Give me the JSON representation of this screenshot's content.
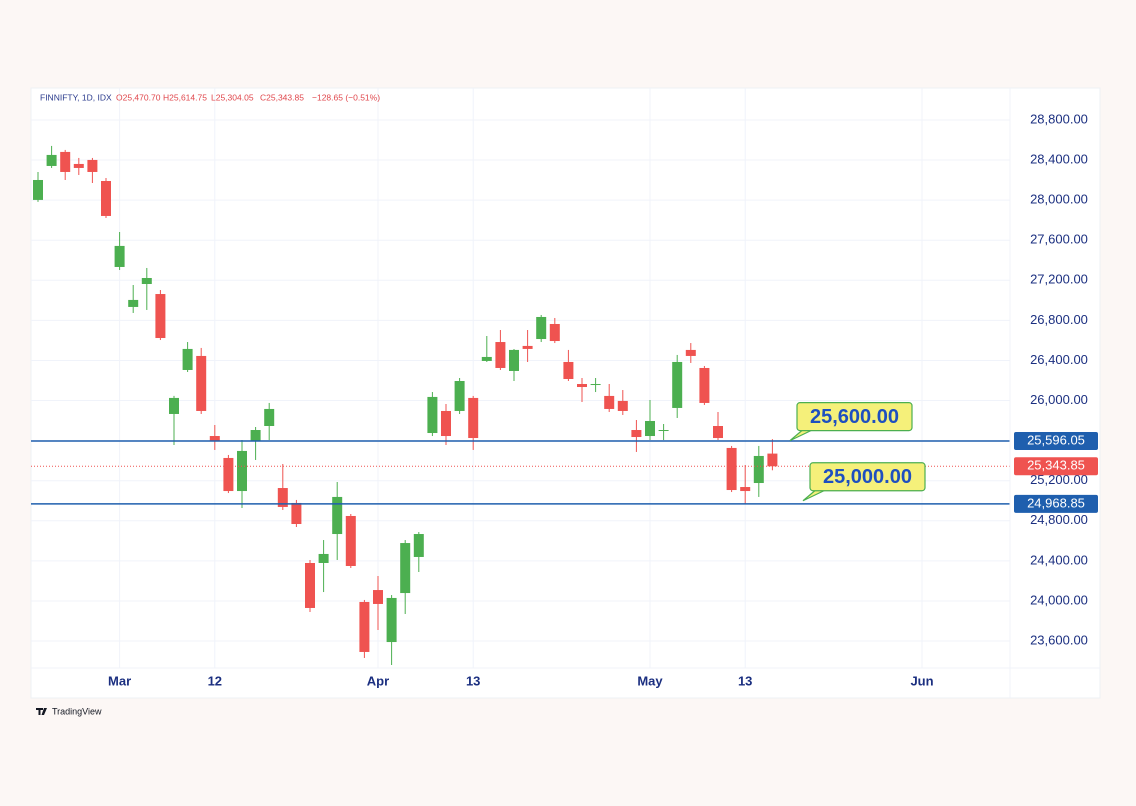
{
  "chart_data": {
    "type": "candlestick",
    "header": {
      "symbol": "FINNIFTY, 1D, IDX",
      "open": "O25,470.70",
      "high": "H25,614.75",
      "low": "L25,304.05",
      "close": "C25,343.85",
      "change": "−128.65 (−0.51%)"
    },
    "watermark": "TradingView",
    "categories": [
      null,
      null,
      null,
      null,
      null,
      null,
      "Mar",
      null,
      null,
      null,
      null,
      null,
      null,
      "12",
      null,
      null,
      null,
      null,
      null,
      null,
      null,
      null,
      null,
      null,
      null,
      "Apr",
      null,
      null,
      null,
      null,
      null,
      null,
      "13",
      null,
      null,
      null,
      null,
      null,
      null,
      null,
      null,
      null,
      null,
      null,
      null,
      "May",
      null,
      null,
      null,
      null,
      null,
      null,
      "13",
      null,
      null,
      null,
      null,
      null,
      null,
      null,
      null,
      null,
      null,
      null,
      null,
      "Jun",
      null,
      null,
      null,
      null,
      null,
      null
    ],
    "open": [
      28002,
      28341,
      28481,
      28361,
      28401,
      28191,
      27333,
      26934,
      27163,
      27063,
      25866,
      26305,
      26445,
      25646,
      25427,
      25097,
      25596,
      25746,
      25127,
      24978,
      24379,
      24379,
      24668,
      24848,
      23990,
      24109,
      23590,
      24079,
      24439,
      25676,
      25896,
      25896,
      26026,
      26395,
      26584,
      26295,
      26545,
      26614,
      26764,
      26385,
      26165,
      26155,
      26046,
      25996,
      25706,
      25646,
      25696,
      25926,
      26505,
      26325,
      25746,
      25527,
      25137,
      25177,
      25470.7,
      null,
      null,
      null,
      null,
      null,
      null,
      null,
      null,
      null,
      null,
      null,
      null,
      null,
      null,
      null,
      null,
      null
    ],
    "high": [
      28281,
      28541,
      28501,
      28421,
      28421,
      28221,
      27682,
      27153,
      27323,
      27103,
      26046,
      26584,
      26525,
      25756,
      25457,
      25606,
      25736,
      25976,
      25367,
      25008,
      24409,
      24608,
      25187,
      24868,
      24010,
      24249,
      24059,
      24608,
      24688,
      26085,
      25966,
      26225,
      26046,
      26644,
      26704,
      26515,
      26704,
      26854,
      26824,
      26505,
      26225,
      26225,
      26165,
      26105,
      25806,
      26006,
      25766,
      26455,
      26574,
      26345,
      25886,
      25547,
      25357,
      25547,
      25614.75,
      null,
      null,
      null,
      null,
      null,
      null,
      null,
      null,
      null,
      null,
      null,
      null,
      null,
      null,
      null,
      null,
      null
    ],
    "low": [
      27982,
      28321,
      28201,
      28251,
      28171,
      27822,
      27303,
      26874,
      26904,
      26604,
      25556,
      26285,
      25866,
      25507,
      25077,
      24928,
      25407,
      25606,
      24908,
      24738,
      23890,
      24089,
      24409,
      24329,
      23431,
      23710,
      23361,
      23870,
      24289,
      25646,
      25556,
      25866,
      25507,
      26385,
      26305,
      26195,
      26385,
      26584,
      26574,
      26195,
      25986,
      26085,
      25886,
      25856,
      25487,
      25606,
      25606,
      25826,
      26375,
      25956,
      25606,
      25087,
      24968,
      25038,
      25304.05,
      null,
      null,
      null,
      null,
      null,
      null,
      null,
      null,
      null,
      null,
      null,
      null,
      null,
      null,
      null,
      null,
      null
    ],
    "close": [
      28201,
      28451,
      28281,
      28321,
      28281,
      27842,
      27543,
      27004,
      27223,
      26624,
      26026,
      26515,
      25896,
      25596,
      25097,
      25497,
      25706,
      25916,
      24938,
      24768,
      23930,
      24469,
      25038,
      24349,
      23491,
      23970,
      24030,
      24578,
      24668,
      26036,
      25646,
      26195,
      25626,
      26435,
      26325,
      26505,
      26515,
      26834,
      26594,
      26215,
      26135,
      26165,
      25916,
      25896,
      25636,
      25796,
      25706,
      26385,
      26445,
      25976,
      25626,
      25107,
      25097,
      25447,
      25343.85,
      null,
      null,
      null,
      null,
      null,
      null,
      null,
      null,
      null,
      null,
      null,
      null,
      null,
      null,
      null,
      null,
      null
    ],
    "up_color": "#4caf50",
    "down_color": "#ef5350",
    "ylim": [
      23331,
      29119
    ],
    "yticks": [
      {
        "value": 23600,
        "label": "23,600.00"
      },
      {
        "value": 24000,
        "label": "24,000.00"
      },
      {
        "value": 24400,
        "label": "24,400.00"
      },
      {
        "value": 24800,
        "label": "24,800.00"
      },
      {
        "value": 25200,
        "label": "25,200.00"
      },
      {
        "value": 25600,
        "label": "25,600.00"
      },
      {
        "value": 26000,
        "label": "26,000.00"
      },
      {
        "value": 26400,
        "label": "26,400.00"
      },
      {
        "value": 26800,
        "label": "26,800.00"
      },
      {
        "value": 27200,
        "label": "27,200.00"
      },
      {
        "value": 27600,
        "label": "27,600.00"
      },
      {
        "value": 28000,
        "label": "28,000.00"
      },
      {
        "value": 28400,
        "label": "28,400.00"
      },
      {
        "value": 28800,
        "label": "28,800.00"
      }
    ],
    "grid": true,
    "levels": [
      {
        "value": 25596.05,
        "label": "25,596.05"
      },
      {
        "value": 24968.85,
        "label": "24,968.85"
      }
    ],
    "level_color": "#1f5fae",
    "last_price": {
      "value": 25343.85,
      "label": "25,343.85"
    },
    "annotations": [
      {
        "value": 25600,
        "label": "25,600.00"
      },
      {
        "value": 25000,
        "label": "25,000.00"
      }
    ]
  }
}
